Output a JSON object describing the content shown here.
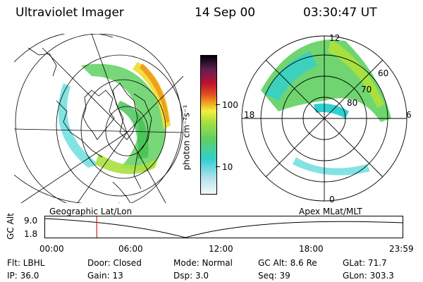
{
  "header": {
    "instrument": "Ultraviolet Imager",
    "date": "14 Sep 00",
    "time": "03:30:47 UT"
  },
  "colorbar": {
    "unit_label": "photon cm⁻²s⁻¹",
    "ticks": [
      "100",
      "10"
    ],
    "colors": [
      "#e8f6f8",
      "#b0e0ec",
      "#30d0d0",
      "#60d060",
      "#a8e040",
      "#f0f040",
      "#f0a020",
      "#e05020",
      "#c01030",
      "#602050",
      "#000000"
    ]
  },
  "map_labels": {
    "geographic": "Geographic Lat/Lon",
    "apex": "Apex  MLat/MLT"
  },
  "polar": {
    "mlt_labels": {
      "top": "12",
      "left": "18",
      "right": "6",
      "bottom": "0"
    },
    "lat_labels": [
      "60",
      "70",
      "80"
    ]
  },
  "altitude_plot": {
    "axis_label": "GC Alt",
    "y_ticks": [
      "9.0",
      "1.8"
    ],
    "x_ticks": [
      "00:00",
      "06:00",
      "12:00",
      "18:00",
      "23:59"
    ],
    "current_time_marker_hours": 3.5,
    "marker_color": "#d02020"
  },
  "footer": {
    "filter": "Flt: LBHL",
    "door": "Door: Closed",
    "mode": "Mode: Normal",
    "gc_alt": "GC Alt: 8.6 Re",
    "glat": "GLat:  71.7",
    "ip": "IP: 36.0",
    "gain": "Gain: 13",
    "dsp": "Dsp:     3.0",
    "seq": "Seq: 39",
    "glon": "GLon: 303.3"
  }
}
